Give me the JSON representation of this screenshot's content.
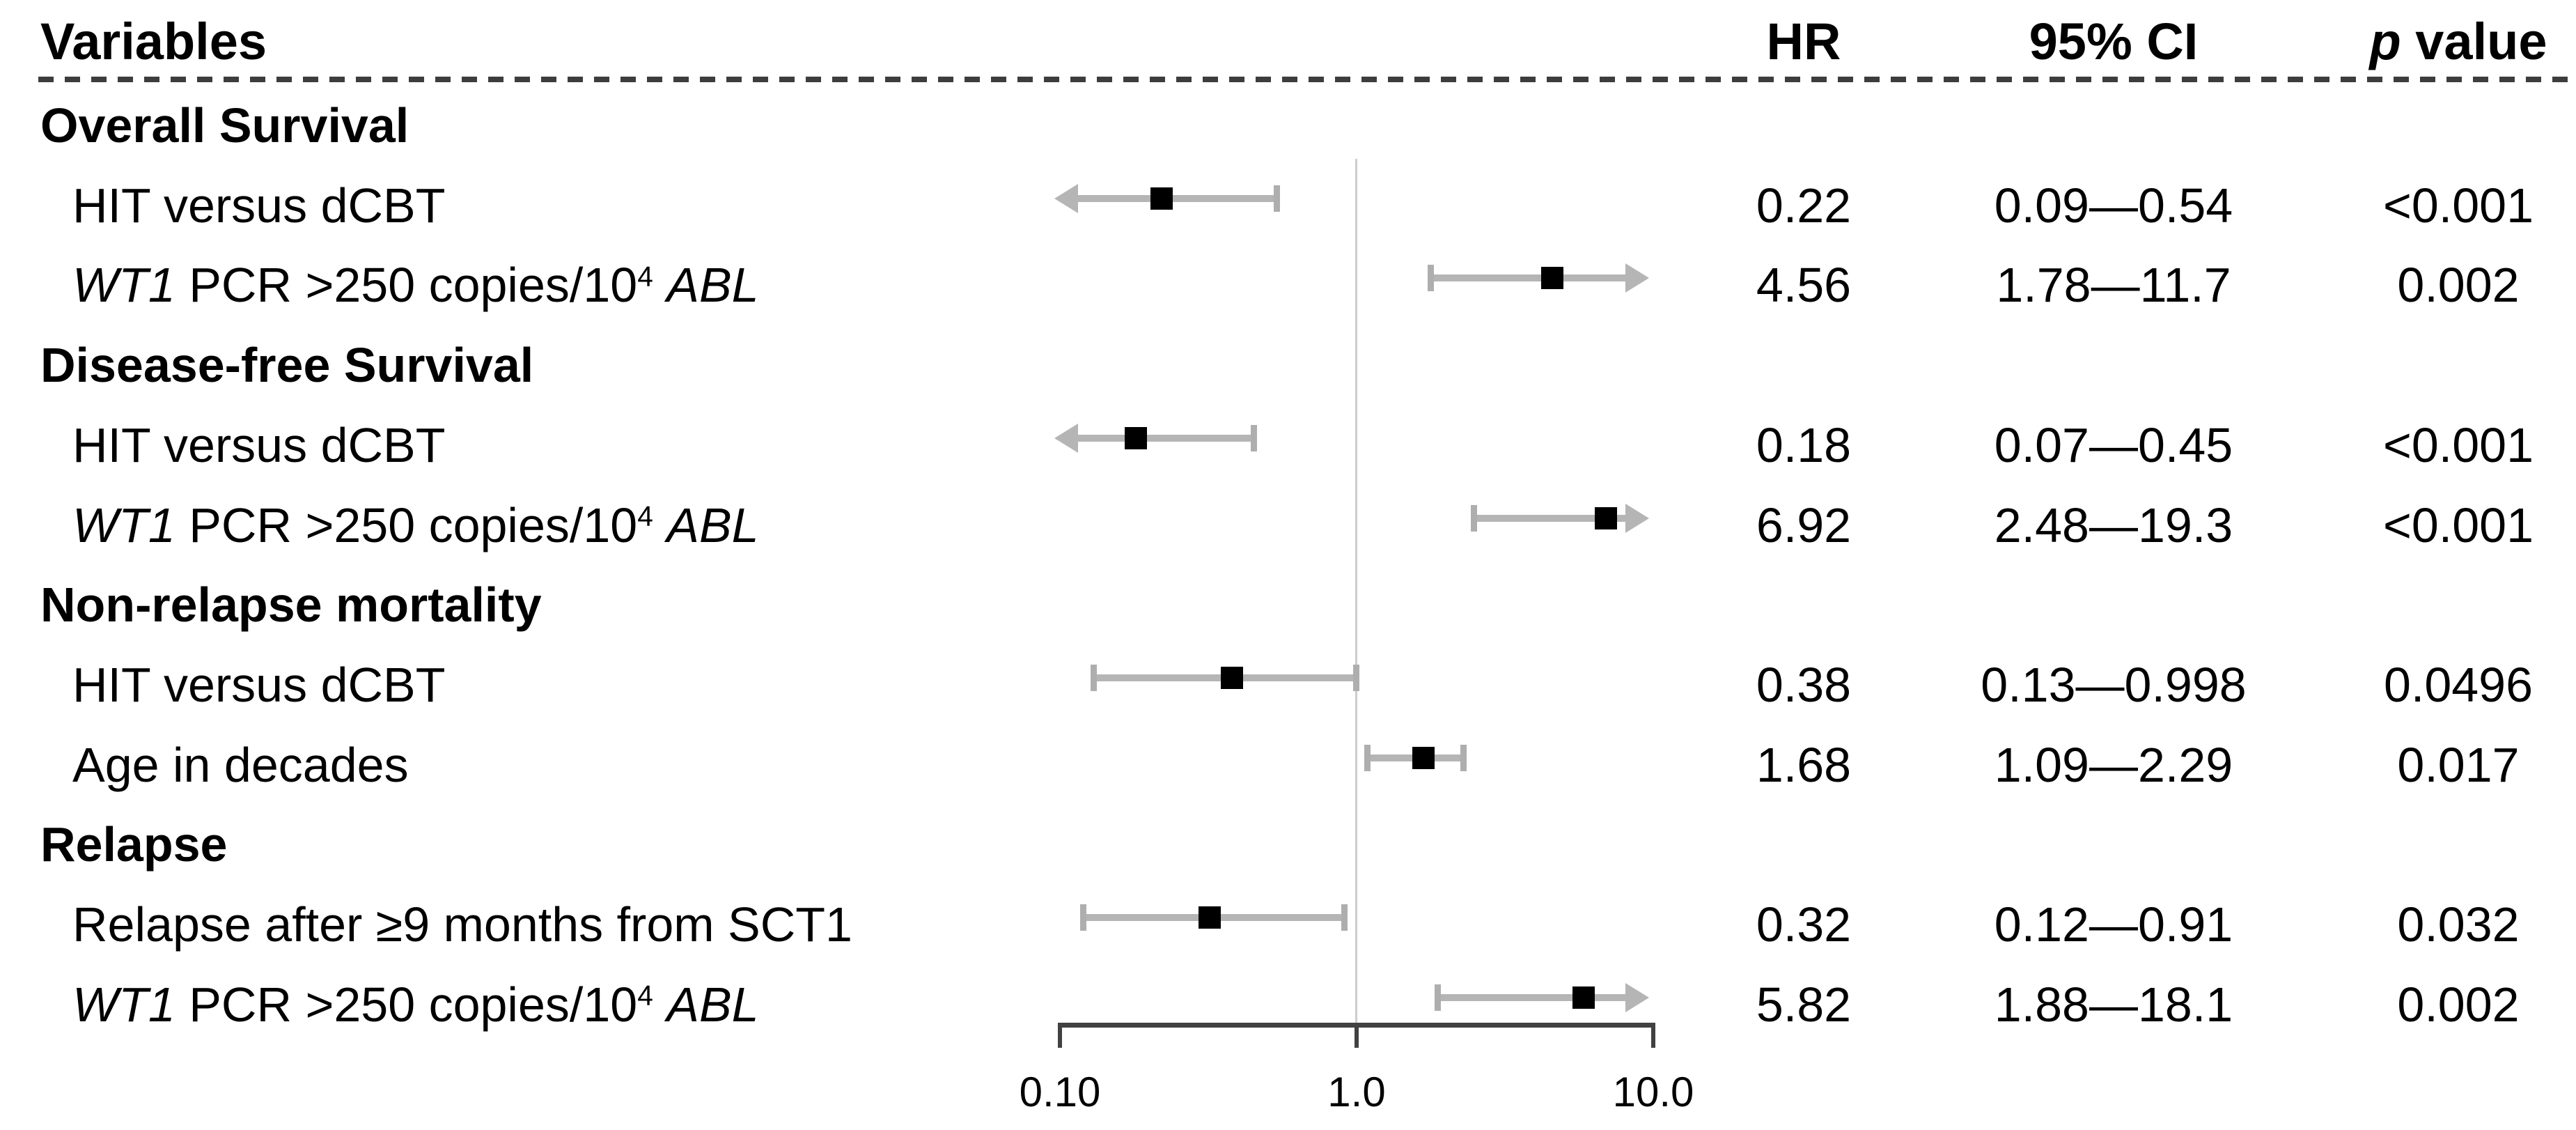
{
  "chart_data": {
    "type": "forest",
    "title": "",
    "columns": {
      "variables": "Variables",
      "hr": "HR",
      "ci": "95% CI",
      "p_italic": "p",
      "p_suffix": " value"
    },
    "x_axis": {
      "scale": "log10",
      "min": 0.1,
      "max": 10.0,
      "reference_line": 1.0,
      "ticks": [
        {
          "label": "0.10",
          "value": 0.1
        },
        {
          "label": "1.0",
          "value": 1.0
        },
        {
          "label": "10.0",
          "value": 10.0
        }
      ]
    },
    "rows": [
      {
        "kind": "section",
        "parts": [
          {
            "t": "Overall Survival"
          }
        ]
      },
      {
        "kind": "data",
        "parts": [
          {
            "t": "HIT versus dCBT"
          }
        ],
        "hr_text": "0.22",
        "ci_text": "0.09—0.54",
        "p_text": "<0.001",
        "est": 0.22,
        "lo": 0.09,
        "hi": 0.54
      },
      {
        "kind": "data",
        "parts": [
          {
            "t": "WT1",
            "s": "i"
          },
          {
            "t": " PCR >250 copies/10"
          },
          {
            "t": "4",
            "s": "sup"
          },
          {
            "t": " "
          },
          {
            "t": "ABL",
            "s": "i"
          }
        ],
        "hr_text": "4.56",
        "ci_text": "1.78—11.7",
        "p_text": "0.002",
        "est": 4.56,
        "lo": 1.78,
        "hi": 11.7
      },
      {
        "kind": "section",
        "parts": [
          {
            "t": "Disease-free Survival"
          }
        ]
      },
      {
        "kind": "data",
        "parts": [
          {
            "t": "HIT versus dCBT"
          }
        ],
        "hr_text": "0.18",
        "ci_text": "0.07—0.45",
        "p_text": "<0.001",
        "est": 0.18,
        "lo": 0.07,
        "hi": 0.45
      },
      {
        "kind": "data",
        "parts": [
          {
            "t": "WT1",
            "s": "i"
          },
          {
            "t": " PCR >250 copies/10"
          },
          {
            "t": "4",
            "s": "sup"
          },
          {
            "t": " "
          },
          {
            "t": "ABL",
            "s": "i"
          }
        ],
        "hr_text": "6.92",
        "ci_text": "2.48—19.3",
        "p_text": "<0.001",
        "est": 6.92,
        "lo": 2.48,
        "hi": 19.3
      },
      {
        "kind": "section",
        "parts": [
          {
            "t": "Non-relapse mortality"
          }
        ]
      },
      {
        "kind": "data",
        "parts": [
          {
            "t": "HIT versus dCBT"
          }
        ],
        "hr_text": "0.38",
        "ci_text": "0.13—0.998",
        "p_text": "0.0496",
        "est": 0.38,
        "lo": 0.13,
        "hi": 0.998
      },
      {
        "kind": "data",
        "parts": [
          {
            "t": "Age in decades"
          }
        ],
        "hr_text": "1.68",
        "ci_text": "1.09—2.29",
        "p_text": "0.017",
        "est": 1.68,
        "lo": 1.09,
        "hi": 2.29
      },
      {
        "kind": "section",
        "parts": [
          {
            "t": "Relapse"
          }
        ]
      },
      {
        "kind": "data",
        "parts": [
          {
            "t": "Relapse after ≥9 months from SCT1"
          }
        ],
        "hr_text": "0.32",
        "ci_text": "0.12—0.91",
        "p_text": "0.032",
        "est": 0.32,
        "lo": 0.12,
        "hi": 0.91
      },
      {
        "kind": "data",
        "parts": [
          {
            "t": "WT1",
            "s": "i"
          },
          {
            "t": " PCR >250 copies/10"
          },
          {
            "t": "4",
            "s": "sup"
          },
          {
            "t": " "
          },
          {
            "t": "ABL",
            "s": "i"
          }
        ],
        "hr_text": "5.82",
        "ci_text": "1.88—18.1",
        "p_text": "0.002",
        "est": 5.82,
        "lo": 1.88,
        "hi": 18.1
      }
    ],
    "colors": {
      "background": "#ffffff",
      "text": "#000000",
      "ci_bar": "#b5b5b5",
      "ci_cap": "#aeaeae",
      "marker": "#000000",
      "reference_line": "#cccccc",
      "axis": "#414141",
      "header_rule": "#3d3d3d"
    },
    "legend": null,
    "grid": false
  }
}
